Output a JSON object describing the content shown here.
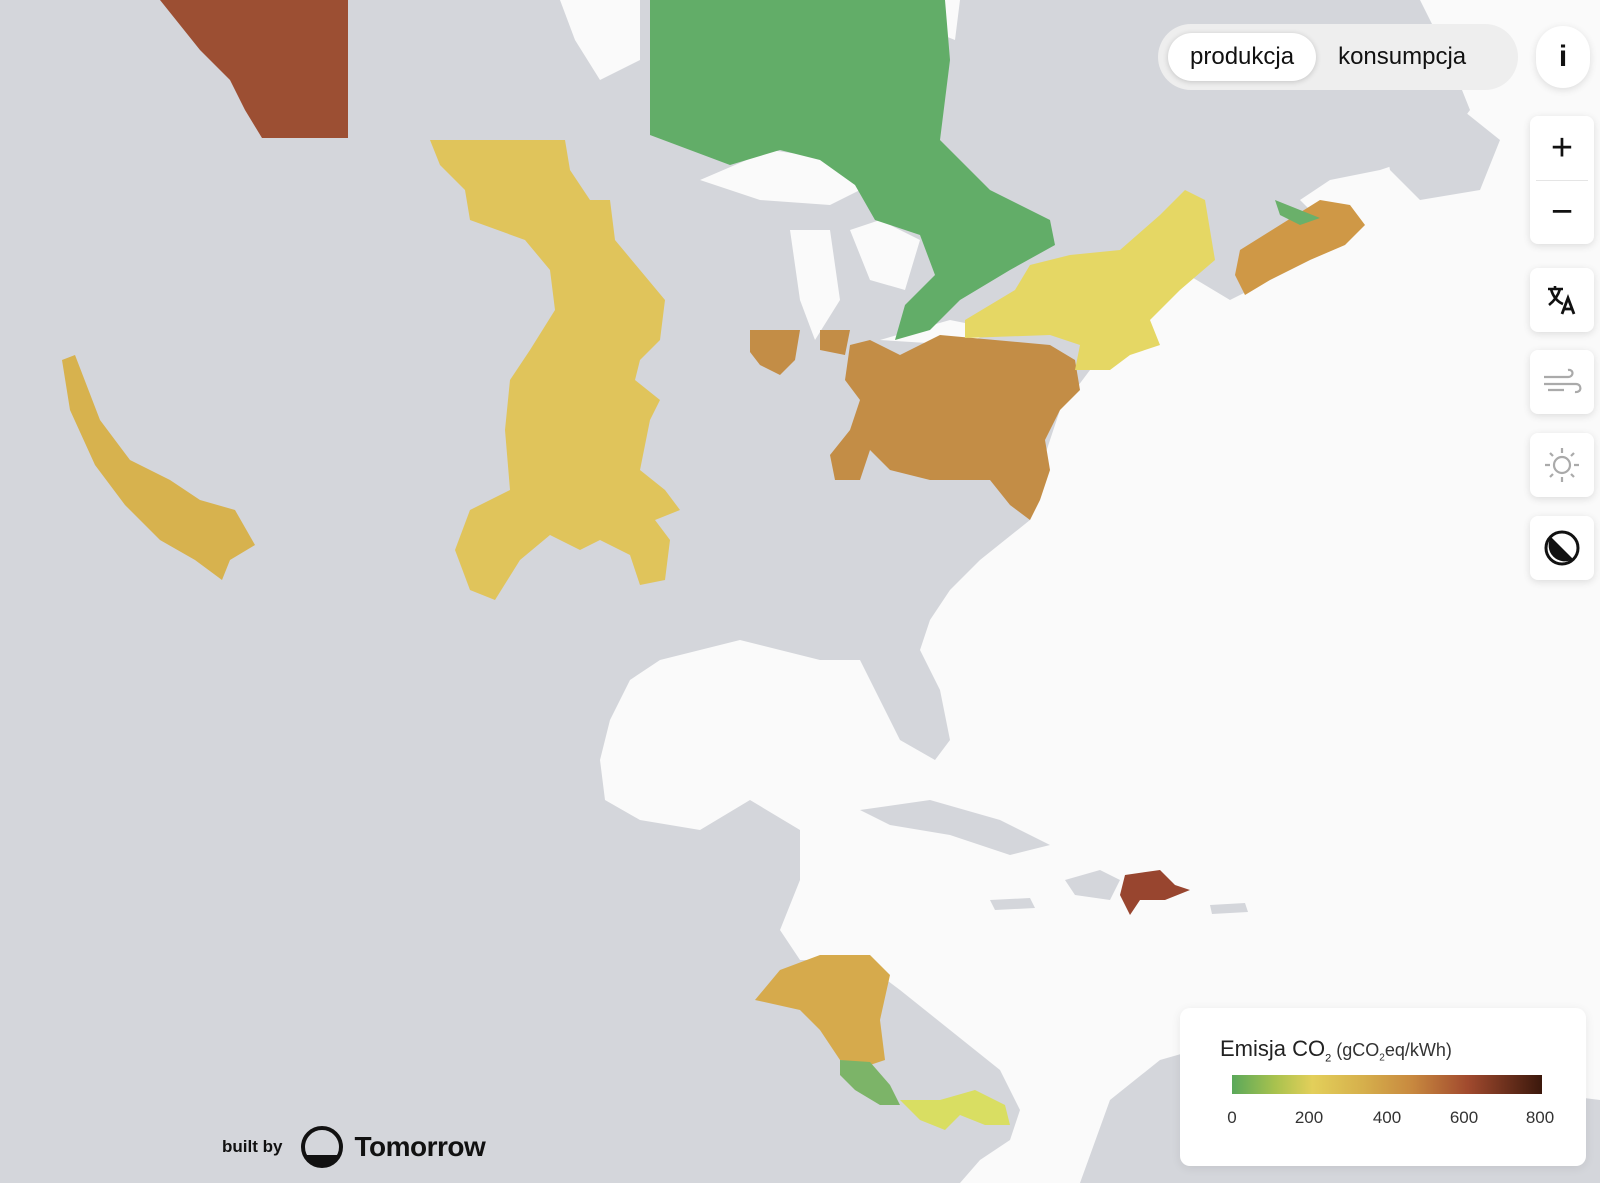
{
  "toggle": {
    "production_label": "produkcja",
    "consumption_label": "konsumpcja",
    "active": "produkcja"
  },
  "info_label": "i",
  "controls": {
    "zoom_in": "+",
    "zoom_out": "−"
  },
  "layers": [
    {
      "name": "language-icon",
      "active": true
    },
    {
      "name": "wind-icon",
      "active": false
    },
    {
      "name": "sun-icon",
      "active": false
    },
    {
      "name": "dark-mode-icon",
      "active": true
    }
  ],
  "legend": {
    "title": "Emisja CO",
    "title_sub": "2",
    "unit_pre": " (gCO",
    "unit_sub": "2",
    "unit_post": "eq/kWh)",
    "ticks": [
      "0",
      "200",
      "400",
      "600",
      "800"
    ],
    "colors": {
      "low": "#5aa85a",
      "mid": "#e3cf5a",
      "high": "#a14a2e",
      "max": "#3b180c"
    }
  },
  "branding": {
    "prefix": "built by",
    "name": "Tomorrow"
  },
  "map_colors": {
    "background": "#fafafa",
    "land": "#d4d6db",
    "ontario": "#62ad68",
    "quebec_nb": "#6ab06a",
    "bc_alberta": "#9c4f33",
    "california": "#d7b24e",
    "central": "#e0c45b",
    "midwest_east": "#c38d46",
    "northeast": "#e5d764",
    "maritimes": "#cf9846",
    "dominican": "#98452f",
    "honduras_nic": "#d6aa4c",
    "costa_rica": "#7cb468",
    "panama": "#d9de62"
  }
}
